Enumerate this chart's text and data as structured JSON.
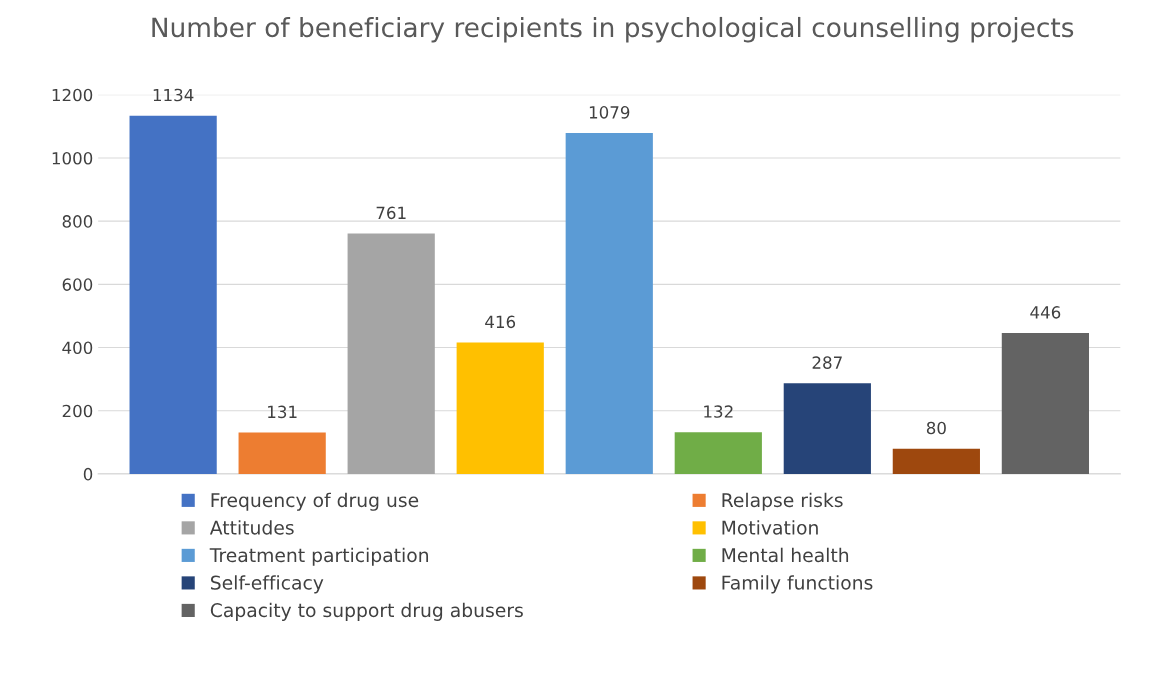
{
  "chart_data": {
    "type": "bar",
    "title": "Number of beneficiary recipients in psychological counselling projects",
    "categories": [
      null
    ],
    "series": [
      {
        "name": "Frequency of drug use",
        "color": "#4472c4",
        "values": [
          1134
        ]
      },
      {
        "name": "Relapse risks",
        "color": "#ed7d31",
        "values": [
          131
        ]
      },
      {
        "name": "Attitudes",
        "color": "#a5a5a5",
        "values": [
          761
        ]
      },
      {
        "name": "Motivation",
        "color": "#ffc000",
        "values": [
          416
        ]
      },
      {
        "name": "Treatment participation",
        "color": "#5b9bd5",
        "values": [
          1079
        ]
      },
      {
        "name": "Mental health",
        "color": "#70ad47",
        "values": [
          132
        ]
      },
      {
        "name": "Self-efficacy",
        "color": "#264478",
        "values": [
          287
        ]
      },
      {
        "name": "Family functions",
        "color": "#9e480e",
        "values": [
          80
        ]
      },
      {
        "name": "Capacity to support drug abusers",
        "color": "#636363",
        "values": [
          446
        ]
      }
    ],
    "ylim": [
      0,
      1200
    ],
    "yticks": [
      0,
      200,
      400,
      600,
      800,
      1000,
      1200
    ],
    "grid": "y",
    "data_labels": true,
    "legend": "bottom"
  }
}
